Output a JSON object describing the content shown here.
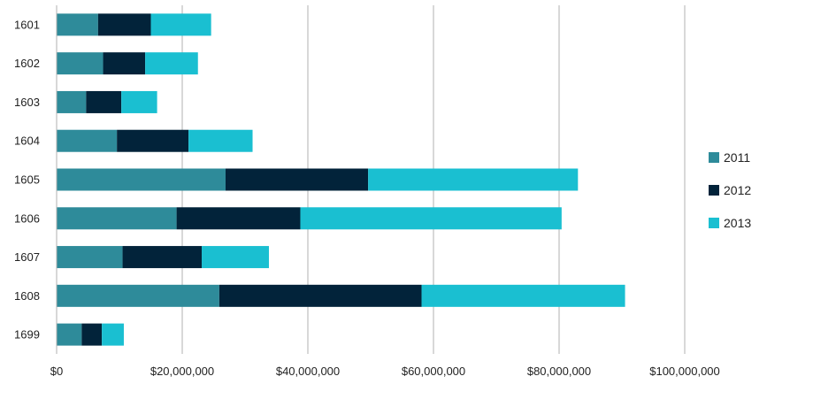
{
  "chart_data": {
    "type": "bar",
    "orientation": "horizontal",
    "stacked": true,
    "categories": [
      "1601",
      "1602",
      "1603",
      "1604",
      "1605",
      "1606",
      "1607",
      "1608",
      "1699"
    ],
    "series": [
      {
        "name": "2011",
        "color": "#2e8b9a",
        "values": [
          6600000,
          7400000,
          4700000,
          9600000,
          26900000,
          19100000,
          10500000,
          25900000,
          4000000
        ]
      },
      {
        "name": "2012",
        "color": "#02233a",
        "values": [
          8400000,
          6700000,
          5600000,
          11400000,
          22700000,
          19700000,
          12600000,
          32200000,
          3200000
        ]
      },
      {
        "name": "2013",
        "color": "#1abfd1",
        "values": [
          9600000,
          8400000,
          5700000,
          10200000,
          33400000,
          41600000,
          10700000,
          32400000,
          3500000
        ]
      }
    ],
    "x_ticks": [
      "$0",
      "$20,000,000",
      "$40,000,000",
      "$60,000,000",
      "$80,000,000",
      "$100,000,000"
    ],
    "xlim": [
      0,
      100000000
    ],
    "grid": "vertical",
    "legend_position": "right"
  }
}
